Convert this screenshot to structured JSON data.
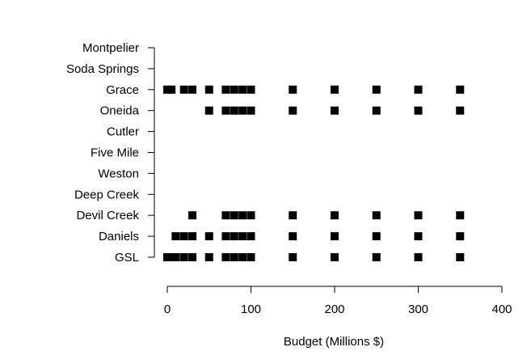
{
  "chart_data": {
    "type": "scatter",
    "title": "",
    "xlabel": "Budget (Millions $)",
    "ylabel": "",
    "xlim": [
      0,
      400
    ],
    "x_ticks": [
      "0",
      "100",
      "200",
      "300",
      "400"
    ],
    "categories": [
      "GSL",
      "Daniels",
      "Devil Creek",
      "Deep Creek",
      "Weston",
      "Five Mile",
      "Cutler",
      "Oneida",
      "Grace",
      "Soda Springs",
      "Montpelier"
    ],
    "series": [
      {
        "category": "GSL",
        "x": [
          0,
          5,
          10,
          20,
          30,
          50,
          70,
          80,
          90,
          100,
          150,
          200,
          250,
          300,
          350
        ]
      },
      {
        "category": "Daniels",
        "x": [
          10,
          20,
          30,
          50,
          70,
          80,
          90,
          100,
          150,
          200,
          250,
          300,
          350
        ]
      },
      {
        "category": "Devil Creek",
        "x": [
          30,
          70,
          80,
          90,
          100,
          150,
          200,
          250,
          300,
          350
        ]
      },
      {
        "category": "Deep Creek",
        "x": []
      },
      {
        "category": "Weston",
        "x": []
      },
      {
        "category": "Five Mile",
        "x": []
      },
      {
        "category": "Cutler",
        "x": []
      },
      {
        "category": "Oneida",
        "x": [
          50,
          70,
          80,
          90,
          100,
          150,
          200,
          250,
          300,
          350
        ]
      },
      {
        "category": "Grace",
        "x": [
          0,
          5,
          20,
          30,
          50,
          70,
          80,
          90,
          100,
          150,
          200,
          250,
          300,
          350
        ]
      },
      {
        "category": "Soda Springs",
        "x": []
      },
      {
        "category": "Montpelier",
        "x": []
      }
    ],
    "marker": "square",
    "marker_color": "#000000",
    "grid": false,
    "legend": "none"
  }
}
